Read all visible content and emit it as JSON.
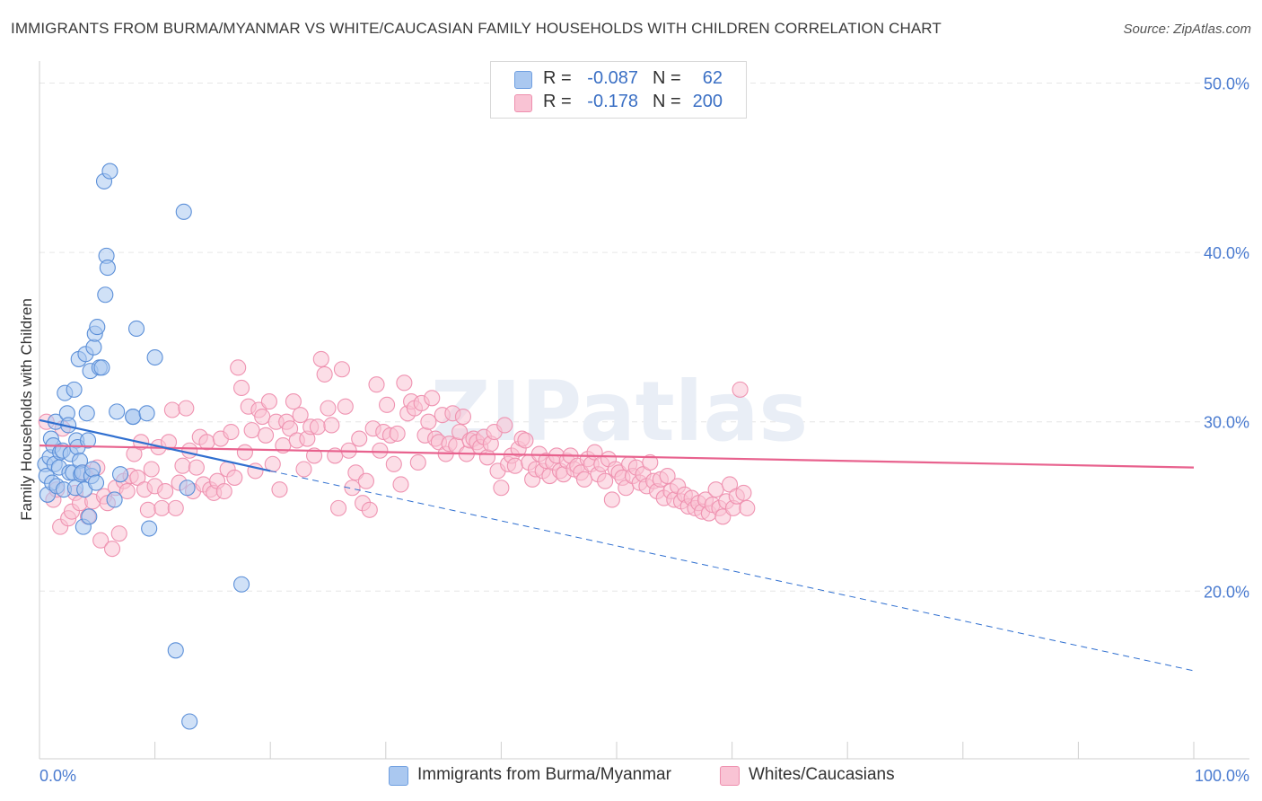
{
  "title": "IMMIGRANTS FROM BURMA/MYANMAR VS WHITE/CAUCASIAN FAMILY HOUSEHOLDS WITH CHILDREN CORRELATION CHART",
  "source": "Source: ZipAtlas.com",
  "watermark": "ZIPatlas",
  "legend": {
    "rows": [
      {
        "r_label": "R =",
        "r_value": "-0.087",
        "n_label": "N =",
        "n_value": "62",
        "color": "#aac8f0",
        "border": "#6f9fe0"
      },
      {
        "r_label": "R =",
        "r_value": "-0.178",
        "n_label": "N =",
        "n_value": "200",
        "color": "#f9c3d4",
        "border": "#ee8fae"
      }
    ]
  },
  "colors": {
    "blue_fill": "#aac8f0",
    "blue_stroke": "#5b8fd8",
    "blue_line": "#2f6fd0",
    "pink_fill": "#f9c3d4",
    "pink_stroke": "#ef93b1",
    "pink_line": "#e8628e",
    "tick_text": "#4a7bd0",
    "grid": "#e6e6e6"
  },
  "chart_data": {
    "type": "scatter",
    "title": "IMMIGRANTS FROM BURMA/MYANMAR VS WHITE/CAUCASIAN FAMILY HOUSEHOLDS WITH CHILDREN CORRELATION CHART",
    "xlabel": "",
    "ylabel": "Family Households with Children",
    "xlim": [
      0,
      100
    ],
    "ylim": [
      10.1,
      51.3
    ],
    "x_ticks": [
      "0.0%",
      "100.0%"
    ],
    "y_ticks": [
      {
        "value": 20,
        "label": "20.0%"
      },
      {
        "value": 30,
        "label": "30.0%"
      },
      {
        "value": 40,
        "label": "40.0%"
      },
      {
        "value": 50,
        "label": "50.0%"
      }
    ],
    "grid": true,
    "series": [
      {
        "name": "Immigrants from Burma/Myanmar",
        "r": -0.087,
        "n": 62,
        "trend_solid": {
          "x": [
            0,
            20
          ],
          "y": [
            30.1,
            27.1
          ]
        },
        "trend_dashed": {
          "x": [
            20,
            100
          ],
          "y": [
            27.1,
            15.3
          ]
        },
        "points": [
          [
            0.5,
            27.5
          ],
          [
            0.6,
            26.8
          ],
          [
            0.7,
            25.7
          ],
          [
            0.9,
            27.9
          ],
          [
            1.0,
            29.0
          ],
          [
            1.1,
            26.4
          ],
          [
            1.2,
            28.6
          ],
          [
            1.3,
            27.5
          ],
          [
            1.4,
            30.0
          ],
          [
            1.5,
            26.2
          ],
          [
            1.7,
            27.3
          ],
          [
            1.8,
            28.2
          ],
          [
            2.0,
            28.3
          ],
          [
            2.1,
            26.0
          ],
          [
            2.2,
            31.7
          ],
          [
            2.4,
            30.5
          ],
          [
            2.5,
            29.8
          ],
          [
            2.6,
            27.0
          ],
          [
            2.7,
            28.1
          ],
          [
            2.9,
            27.0
          ],
          [
            3.0,
            31.9
          ],
          [
            3.1,
            26.1
          ],
          [
            3.2,
            28.9
          ],
          [
            3.3,
            28.5
          ],
          [
            3.4,
            33.7
          ],
          [
            3.5,
            27.7
          ],
          [
            3.6,
            26.9
          ],
          [
            3.7,
            27.0
          ],
          [
            3.8,
            23.8
          ],
          [
            3.9,
            26.0
          ],
          [
            4.0,
            34.0
          ],
          [
            4.1,
            30.5
          ],
          [
            4.2,
            28.9
          ],
          [
            4.3,
            24.4
          ],
          [
            4.4,
            33.0
          ],
          [
            4.5,
            26.8
          ],
          [
            4.6,
            27.2
          ],
          [
            4.7,
            34.4
          ],
          [
            4.8,
            35.2
          ],
          [
            4.9,
            26.4
          ],
          [
            5.0,
            35.6
          ],
          [
            5.2,
            33.2
          ],
          [
            5.4,
            33.2
          ],
          [
            5.6,
            44.2
          ],
          [
            5.7,
            37.5
          ],
          [
            5.8,
            39.8
          ],
          [
            5.9,
            39.1
          ],
          [
            6.1,
            44.8
          ],
          [
            6.7,
            30.6
          ],
          [
            7.0,
            26.9
          ],
          [
            6.5,
            25.4
          ],
          [
            8.1,
            30.3
          ],
          [
            8.1,
            30.3
          ],
          [
            8.4,
            35.5
          ],
          [
            9.3,
            30.5
          ],
          [
            9.5,
            23.7
          ],
          [
            10.0,
            33.8
          ],
          [
            11.8,
            16.5
          ],
          [
            12.5,
            42.4
          ],
          [
            12.8,
            26.1
          ],
          [
            13.0,
            12.3
          ],
          [
            17.5,
            20.4
          ]
        ]
      },
      {
        "name": "Whites/Caucasians",
        "r": -0.178,
        "n": 200,
        "trend_solid": {
          "x": [
            0,
            100
          ],
          "y": [
            28.6,
            27.3
          ]
        },
        "points": [
          [
            0.6,
            30.0
          ],
          [
            1.2,
            25.4
          ],
          [
            1.5,
            26.0
          ],
          [
            1.8,
            23.8
          ],
          [
            2.0,
            29.6
          ],
          [
            2.5,
            24.3
          ],
          [
            2.8,
            24.7
          ],
          [
            3.1,
            25.8
          ],
          [
            3.5,
            25.2
          ],
          [
            3.9,
            27.0
          ],
          [
            4.2,
            24.4
          ],
          [
            4.6,
            25.3
          ],
          [
            5.0,
            27.3
          ],
          [
            5.3,
            23.0
          ],
          [
            5.6,
            25.6
          ],
          [
            5.9,
            25.2
          ],
          [
            6.3,
            22.5
          ],
          [
            6.6,
            26.1
          ],
          [
            6.9,
            23.4
          ],
          [
            7.3,
            26.5
          ],
          [
            7.6,
            25.9
          ],
          [
            7.9,
            26.8
          ],
          [
            8.2,
            28.1
          ],
          [
            8.5,
            26.7
          ],
          [
            8.8,
            28.8
          ],
          [
            9.1,
            26.0
          ],
          [
            9.4,
            24.8
          ],
          [
            9.7,
            27.2
          ],
          [
            10.0,
            26.2
          ],
          [
            10.3,
            28.5
          ],
          [
            10.6,
            24.9
          ],
          [
            10.9,
            25.9
          ],
          [
            11.2,
            28.8
          ],
          [
            11.5,
            30.7
          ],
          [
            11.8,
            24.9
          ],
          [
            12.1,
            26.4
          ],
          [
            12.4,
            27.4
          ],
          [
            12.7,
            30.8
          ],
          [
            13.0,
            28.3
          ],
          [
            13.3,
            25.9
          ],
          [
            13.6,
            27.3
          ],
          [
            13.9,
            29.1
          ],
          [
            14.2,
            26.3
          ],
          [
            14.5,
            28.8
          ],
          [
            14.8,
            26.0
          ],
          [
            15.1,
            25.8
          ],
          [
            15.4,
            26.5
          ],
          [
            15.7,
            29.0
          ],
          [
            16.0,
            25.9
          ],
          [
            16.3,
            27.2
          ],
          [
            16.6,
            29.4
          ],
          [
            16.9,
            26.7
          ],
          [
            17.2,
            33.2
          ],
          [
            17.5,
            32.0
          ],
          [
            17.8,
            28.2
          ],
          [
            18.1,
            30.9
          ],
          [
            18.4,
            29.5
          ],
          [
            18.7,
            27.1
          ],
          [
            19.0,
            30.7
          ],
          [
            19.3,
            30.3
          ],
          [
            19.6,
            29.2
          ],
          [
            19.9,
            31.2
          ],
          [
            20.2,
            27.5
          ],
          [
            20.5,
            30.0
          ],
          [
            20.8,
            26.0
          ],
          [
            21.1,
            28.6
          ],
          [
            21.4,
            30.0
          ],
          [
            21.7,
            29.6
          ],
          [
            22.0,
            31.2
          ],
          [
            22.3,
            28.9
          ],
          [
            22.6,
            30.4
          ],
          [
            22.9,
            27.2
          ],
          [
            23.2,
            29.0
          ],
          [
            23.5,
            29.7
          ],
          [
            23.8,
            28.0
          ],
          [
            24.1,
            29.7
          ],
          [
            24.4,
            33.7
          ],
          [
            24.7,
            32.8
          ],
          [
            25.0,
            30.8
          ],
          [
            25.3,
            29.8
          ],
          [
            25.6,
            28.0
          ],
          [
            25.9,
            24.9
          ],
          [
            26.2,
            33.1
          ],
          [
            26.5,
            30.9
          ],
          [
            26.8,
            28.3
          ],
          [
            27.1,
            26.1
          ],
          [
            27.4,
            27.0
          ],
          [
            27.7,
            29.0
          ],
          [
            28.0,
            25.2
          ],
          [
            28.3,
            26.5
          ],
          [
            28.6,
            24.8
          ],
          [
            28.9,
            29.6
          ],
          [
            29.2,
            32.2
          ],
          [
            29.5,
            28.3
          ],
          [
            29.8,
            29.4
          ],
          [
            30.1,
            31.0
          ],
          [
            30.4,
            29.2
          ],
          [
            30.7,
            27.5
          ],
          [
            31.0,
            29.3
          ],
          [
            31.3,
            26.3
          ],
          [
            31.6,
            32.3
          ],
          [
            31.9,
            30.5
          ],
          [
            32.2,
            31.2
          ],
          [
            32.5,
            30.8
          ],
          [
            32.8,
            27.6
          ],
          [
            33.1,
            31.1
          ],
          [
            33.4,
            29.2
          ],
          [
            33.7,
            30.0
          ],
          [
            34.0,
            31.4
          ],
          [
            34.3,
            29.0
          ],
          [
            34.6,
            28.8
          ],
          [
            34.9,
            30.4
          ],
          [
            35.2,
            28.1
          ],
          [
            35.5,
            28.7
          ],
          [
            35.8,
            30.5
          ],
          [
            36.1,
            28.6
          ],
          [
            36.4,
            29.4
          ],
          [
            36.7,
            30.3
          ],
          [
            37.0,
            28.1
          ],
          [
            37.3,
            28.9
          ],
          [
            37.6,
            29.0
          ],
          [
            37.9,
            28.8
          ],
          [
            38.2,
            28.5
          ],
          [
            38.5,
            29.1
          ],
          [
            38.8,
            27.9
          ],
          [
            39.1,
            28.7
          ],
          [
            39.4,
            29.4
          ],
          [
            39.7,
            27.1
          ],
          [
            40.0,
            26.1
          ],
          [
            40.3,
            29.8
          ],
          [
            40.6,
            27.5
          ],
          [
            40.9,
            28.0
          ],
          [
            41.2,
            27.4
          ],
          [
            41.5,
            28.4
          ],
          [
            41.8,
            29.0
          ],
          [
            42.1,
            28.9
          ],
          [
            42.4,
            27.6
          ],
          [
            42.7,
            26.6
          ],
          [
            43.0,
            27.2
          ],
          [
            43.3,
            28.1
          ],
          [
            43.6,
            27.1
          ],
          [
            43.9,
            27.7
          ],
          [
            44.2,
            26.8
          ],
          [
            44.5,
            27.6
          ],
          [
            44.8,
            28.0
          ],
          [
            45.1,
            27.1
          ],
          [
            45.4,
            26.9
          ],
          [
            45.7,
            27.7
          ],
          [
            46.0,
            28.0
          ],
          [
            46.3,
            27.2
          ],
          [
            46.6,
            27.4
          ],
          [
            46.9,
            27.0
          ],
          [
            47.2,
            26.6
          ],
          [
            47.5,
            27.8
          ],
          [
            47.8,
            27.5
          ],
          [
            48.1,
            28.2
          ],
          [
            48.4,
            26.9
          ],
          [
            48.7,
            27.5
          ],
          [
            49.0,
            26.5
          ],
          [
            49.3,
            27.8
          ],
          [
            49.6,
            25.4
          ],
          [
            49.9,
            27.2
          ],
          [
            50.2,
            27.0
          ],
          [
            50.5,
            26.7
          ],
          [
            50.8,
            26.1
          ],
          [
            51.1,
            27.5
          ],
          [
            51.4,
            26.8
          ],
          [
            51.7,
            27.3
          ],
          [
            52.0,
            26.4
          ],
          [
            52.3,
            26.9
          ],
          [
            52.6,
            26.2
          ],
          [
            52.9,
            27.6
          ],
          [
            53.2,
            26.5
          ],
          [
            53.5,
            25.9
          ],
          [
            53.8,
            26.6
          ],
          [
            54.1,
            25.5
          ],
          [
            54.4,
            26.8
          ],
          [
            54.7,
            25.9
          ],
          [
            55.0,
            25.4
          ],
          [
            55.3,
            26.2
          ],
          [
            55.6,
            25.3
          ],
          [
            55.9,
            25.7
          ],
          [
            56.2,
            25.0
          ],
          [
            56.5,
            25.5
          ],
          [
            56.8,
            24.9
          ],
          [
            57.1,
            25.2
          ],
          [
            57.4,
            24.7
          ],
          [
            57.7,
            25.4
          ],
          [
            58.0,
            24.6
          ],
          [
            58.3,
            25.1
          ],
          [
            58.6,
            26.0
          ],
          [
            58.9,
            24.9
          ],
          [
            59.2,
            24.4
          ],
          [
            59.5,
            25.3
          ],
          [
            59.8,
            26.3
          ],
          [
            60.1,
            24.9
          ],
          [
            60.4,
            25.6
          ],
          [
            60.7,
            31.9
          ],
          [
            61.0,
            25.8
          ],
          [
            61.3,
            24.9
          ]
        ]
      }
    ]
  },
  "bottom_legend": [
    {
      "label": "Immigrants from Burma/Myanmar"
    },
    {
      "label": "Whites/Caucasians"
    }
  ]
}
